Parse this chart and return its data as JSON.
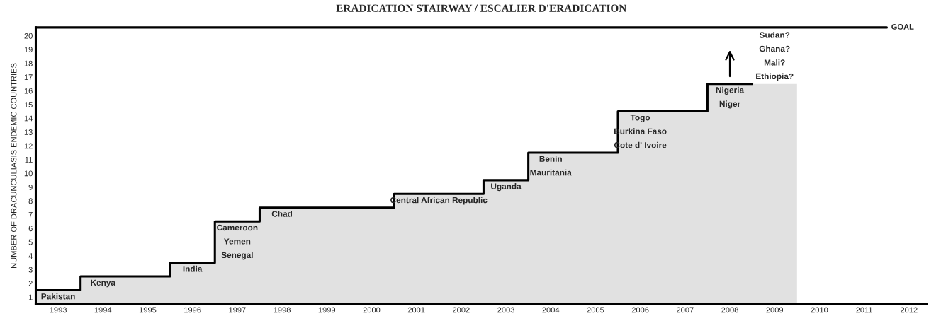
{
  "chart_data": {
    "type": "step",
    "title": "ERADICATION STAIRWAY / ESCALIER D'ERADICATION",
    "ylabel": "NUMBER OF DRACUNCULIASIS ENDEMIC COUNTRIES",
    "x": [
      1992.5,
      1993.5,
      1994.5,
      1995.5,
      1996.5,
      1997.5,
      1998.5,
      1999.5,
      2000.5,
      2001.5,
      2002.5,
      2003.5,
      2004.5,
      2005.5,
      2006.5,
      2007.5,
      2008.5,
      2009.5
    ],
    "series": [
      {
        "type": "area",
        "color": "#e1e1e1",
        "values": [
          1.5,
          2.5,
          2.5,
          3.5,
          6.5,
          7.5,
          7.5,
          7.5,
          8.5,
          8.5,
          9.5,
          11.5,
          11.5,
          14.5,
          14.5,
          16.5,
          16.5,
          16.5
        ]
      },
      {
        "color": "#000000",
        "x": [
          1992.5,
          1993.5,
          1994.5,
          1995.5,
          1996.5,
          1997.5,
          1998.5,
          1999.5,
          2000.5,
          2001.5,
          2002.5,
          2003.5,
          2004.5,
          2005.5,
          2006.5,
          2007.5,
          2008.5
        ],
        "values": [
          1.5,
          2.5,
          2.5,
          3.5,
          6.5,
          7.5,
          7.5,
          7.5,
          8.5,
          8.5,
          9.5,
          11.5,
          11.5,
          14.5,
          14.5,
          16.5,
          16.5
        ]
      }
    ],
    "annotations": [
      {
        "text": "Pakistan",
        "x": 1993,
        "y": 1.5
      },
      {
        "text": "Kenya",
        "x": 1994,
        "y": 2.5
      },
      {
        "text": "India",
        "x": 1996,
        "y": 3.5
      },
      {
        "text": "Cameroon",
        "x": 1997,
        "y": 6.5
      },
      "Yemen",
      "Senegal",
      {
        "text": "Chad",
        "x": 1998,
        "y": 7.5
      },
      {
        "text": "Central African Republic",
        "x": 2001.5,
        "y": 8.5
      },
      {
        "text": "Uganda",
        "x": 2003,
        "y": 9.5
      },
      {
        "text": "Benin",
        "x": 2004,
        "y": 11.5
      },
      "Mauritania",
      {
        "text": "Togo",
        "x": 2006,
        "y": 14.5
      },
      "Burkina Faso",
      "Cote d' Ivoire",
      {
        "text": "Nigeria",
        "x": 2008,
        "y": 16.5
      },
      "Niger",
      {
        "text": "Ethiopia?",
        "x": 2009,
        "y": 16.5
      },
      "Mali?",
      "Ghana?",
      "Sudan?"
    ],
    "ref_lines": [
      {
        "axis": "y",
        "value": 20.6,
        "label": "GOAL"
      }
    ],
    "xlim": [
      1992.5,
      2012.4
    ],
    "xticks": [
      1993,
      1994,
      1995,
      1996,
      1997,
      1998,
      1999,
      2000,
      2001,
      2002,
      2003,
      2004,
      2005,
      2006,
      2007,
      2008,
      2009,
      2010,
      2011,
      2012
    ],
    "ylim": [
      0.5,
      20.6
    ],
    "yticks": [
      1,
      2,
      3,
      4,
      5,
      6,
      7,
      8,
      9,
      10,
      11,
      12,
      13,
      14,
      15,
      16,
      17,
      18,
      19,
      20
    ],
    "grid": false
  }
}
